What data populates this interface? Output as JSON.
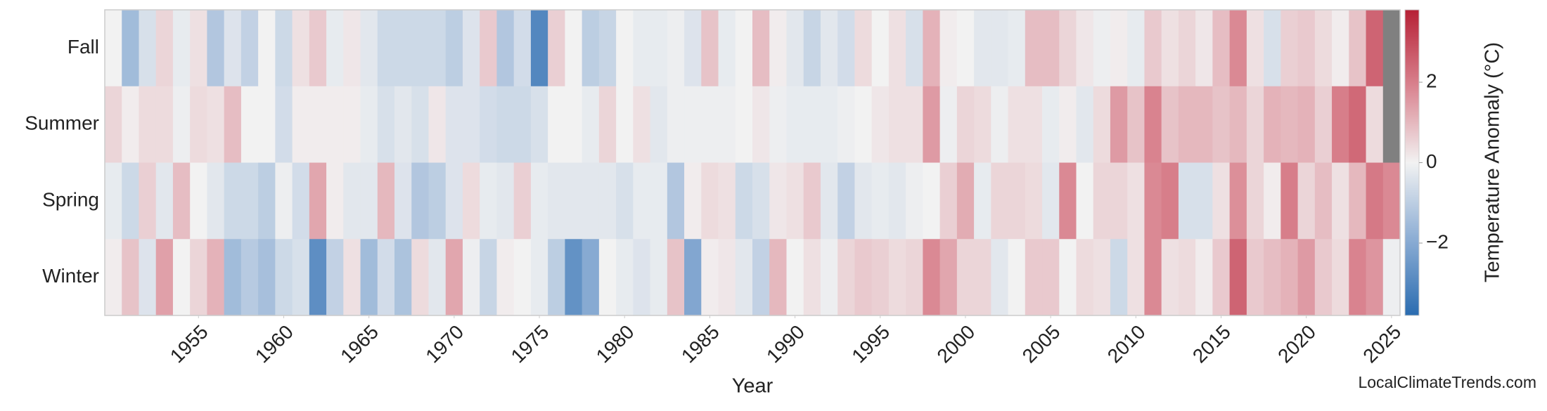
{
  "chart_data": {
    "type": "heatmap",
    "xlabel": "Year",
    "x": [
      1950,
      1951,
      1952,
      1953,
      1954,
      1955,
      1956,
      1957,
      1958,
      1959,
      1960,
      1961,
      1962,
      1963,
      1964,
      1965,
      1966,
      1967,
      1968,
      1969,
      1970,
      1971,
      1972,
      1973,
      1974,
      1975,
      1976,
      1977,
      1978,
      1979,
      1980,
      1981,
      1982,
      1983,
      1984,
      1985,
      1986,
      1987,
      1988,
      1989,
      1990,
      1991,
      1992,
      1993,
      1994,
      1995,
      1996,
      1997,
      1998,
      1999,
      2000,
      2001,
      2002,
      2003,
      2004,
      2005,
      2006,
      2007,
      2008,
      2009,
      2010,
      2011,
      2012,
      2013,
      2014,
      2015,
      2016,
      2017,
      2018,
      2019,
      2020,
      2021,
      2022,
      2023,
      2024,
      2025
    ],
    "xlim": [
      1949.5,
      2025.5
    ],
    "xticks": [
      1955,
      1960,
      1965,
      1970,
      1975,
      1980,
      1985,
      1990,
      1995,
      2000,
      2005,
      2010,
      2015,
      2020,
      2025
    ],
    "rows": [
      {
        "name": "Fall",
        "values": [
          0,
          -1.5,
          -0.5,
          0.5,
          -0.2,
          0.3,
          -1.2,
          -0.4,
          -0.9,
          0,
          -0.7,
          0.3,
          0.7,
          -0.2,
          0.2,
          -0.3,
          -0.7,
          -0.7,
          -0.7,
          -0.7,
          -1.0,
          -0.4,
          0.7,
          -1.2,
          -0.6,
          -3.0,
          0.6,
          0,
          -1.0,
          -0.8,
          0,
          -0.2,
          -0.2,
          -0.1,
          -0.4,
          0.8,
          -0.2,
          0,
          0.9,
          0.1,
          -0.3,
          -0.8,
          -0.3,
          -0.6,
          0.4,
          0,
          0.3,
          -0.5,
          1.1,
          0.1,
          0,
          -0.3,
          -0.3,
          -0.2,
          0.9,
          0.9,
          0.5,
          0.2,
          -0.1,
          0.1,
          -0.2,
          0.7,
          0.3,
          0.5,
          0.2,
          0.9,
          1.8,
          0.3,
          -0.5,
          0.6,
          0.7,
          0.4,
          0.1,
          0.8,
          2.5,
          null
        ]
      },
      {
        "name": "Summer",
        "values": [
          0.5,
          0.1,
          0.4,
          0.4,
          -0.1,
          0.4,
          0.3,
          0.9,
          0,
          0,
          -0.6,
          0.1,
          0.1,
          0.1,
          0.1,
          -0.2,
          -0.5,
          -0.3,
          -0.5,
          0.2,
          -0.4,
          -0.4,
          -0.6,
          -0.7,
          -0.7,
          -0.5,
          0,
          0,
          -0.2,
          0.5,
          0,
          0.3,
          -0.3,
          -0.1,
          -0.1,
          -0.1,
          -0.1,
          0,
          0.2,
          -0.1,
          -0.2,
          -0.2,
          -0.2,
          -0.1,
          0,
          0.2,
          0.3,
          0.3,
          1.5,
          -0.1,
          0.5,
          0.4,
          -0.1,
          0.3,
          0.3,
          -0.2,
          0.1,
          -0.3,
          0.4,
          1.5,
          0.8,
          1.9,
          0.8,
          1.0,
          1.0,
          0.8,
          1.0,
          0.5,
          1.1,
          1.0,
          1.1,
          0.6,
          2.0,
          2.4,
          0.4,
          null
        ]
      },
      {
        "name": "Spring",
        "values": [
          -0.2,
          -0.7,
          0.6,
          -0.3,
          0.9,
          0,
          -0.3,
          -0.7,
          -0.7,
          -1.0,
          -0.1,
          -0.6,
          1.3,
          0.1,
          -0.3,
          -0.3,
          1.0,
          -0.4,
          -1.2,
          -1.0,
          -0.4,
          0.4,
          -0.2,
          -0.3,
          0.6,
          -0.2,
          -0.3,
          -0.3,
          -0.3,
          -0.3,
          -0.5,
          -0.2,
          -0.2,
          -1.2,
          0.1,
          0.4,
          0.3,
          -0.7,
          -0.5,
          0.2,
          0.3,
          0.7,
          -0.3,
          -0.9,
          -0.3,
          -0.2,
          -0.3,
          -0.1,
          0,
          0.6,
          1.2,
          -0.2,
          0.5,
          0.5,
          0.4,
          -0.3,
          1.8,
          0,
          0.5,
          0.5,
          0.3,
          1.8,
          2.0,
          -0.5,
          -0.5,
          0.3,
          1.7,
          0.5,
          0.1,
          2.0,
          0.5,
          0.9,
          0.3,
          1.0,
          2.1,
          1.8
        ]
      },
      {
        "name": "Winter",
        "values": [
          0.1,
          0.8,
          -0.4,
          1.4,
          0,
          0.5,
          1.1,
          -1.5,
          -1.1,
          -1.4,
          -0.7,
          -0.5,
          -2.8,
          -0.9,
          0.3,
          -1.5,
          -0.6,
          -1.3,
          0.4,
          -0.3,
          1.3,
          -0.1,
          -0.8,
          0.1,
          0,
          -0.2,
          -1.0,
          -2.7,
          -2.0,
          0,
          -0.2,
          -0.4,
          -0.2,
          0.8,
          -2.1,
          0.1,
          0.2,
          -0.3,
          -0.9,
          1.0,
          0,
          0.3,
          -0.1,
          0.5,
          0.7,
          0.6,
          0.4,
          0.5,
          1.8,
          1.3,
          0.5,
          0.5,
          -0.3,
          0,
          0.7,
          0.7,
          0,
          0.4,
          0.3,
          -0.7,
          0.3,
          1.8,
          0.3,
          0.4,
          0.1,
          0.7,
          2.5,
          0.7,
          0.9,
          1.1,
          1.5,
          0.7,
          0.4,
          1.9,
          1.6,
          -0.1
        ]
      }
    ],
    "colormap": [
      "#2a6cb0",
      "#8cadd4",
      "#f2f2f2",
      "#d9838f",
      "#b62035"
    ],
    "missing_color": "#808080",
    "colorbar": {
      "label": "Temperature Anomaly (°C)",
      "lim": [
        -3.8,
        3.8
      ],
      "ticks": [
        {
          "value": -2,
          "label": "−2"
        },
        0,
        2
      ]
    },
    "source": "LocalClimateTrends.com"
  }
}
